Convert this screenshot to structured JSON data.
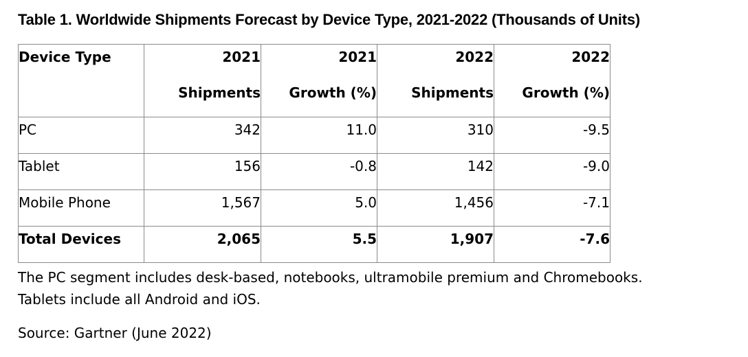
{
  "title": "Table 1. Worldwide Shipments Forecast by Device Type, 2021-2022 (Thousands of Units)",
  "table": {
    "header": [
      {
        "line1": "Device Type",
        "line2": ""
      },
      {
        "line1": "2021",
        "line2": "Shipments"
      },
      {
        "line1": "2021",
        "line2": "Growth (%)"
      },
      {
        "line1": "2022",
        "line2": "Shipments"
      },
      {
        "line1": "2022",
        "line2": "Growth (%)"
      }
    ],
    "rows": [
      {
        "device": "PC",
        "s2021": "342",
        "g2021": "11.0",
        "s2022": "310",
        "g2022": "-9.5"
      },
      {
        "device": "Tablet",
        "s2021": "156",
        "g2021": "-0.8",
        "s2022": "142",
        "g2022": "-9.0"
      },
      {
        "device": "Mobile Phone",
        "s2021": "1,567",
        "g2021": "5.0",
        "s2022": "1,456",
        "g2022": "-7.1"
      }
    ],
    "total": {
      "device": "Total Devices",
      "s2021": "2,065",
      "g2021": "5.5",
      "s2022": "1,907",
      "g2022": "-7.6"
    }
  },
  "notes": {
    "line1": "The PC segment includes desk-based, notebooks, ultramobile premium and Chromebooks.",
    "line2": "Tablets include all Android and iOS."
  },
  "source": "Source: Gartner (June 2022)"
}
